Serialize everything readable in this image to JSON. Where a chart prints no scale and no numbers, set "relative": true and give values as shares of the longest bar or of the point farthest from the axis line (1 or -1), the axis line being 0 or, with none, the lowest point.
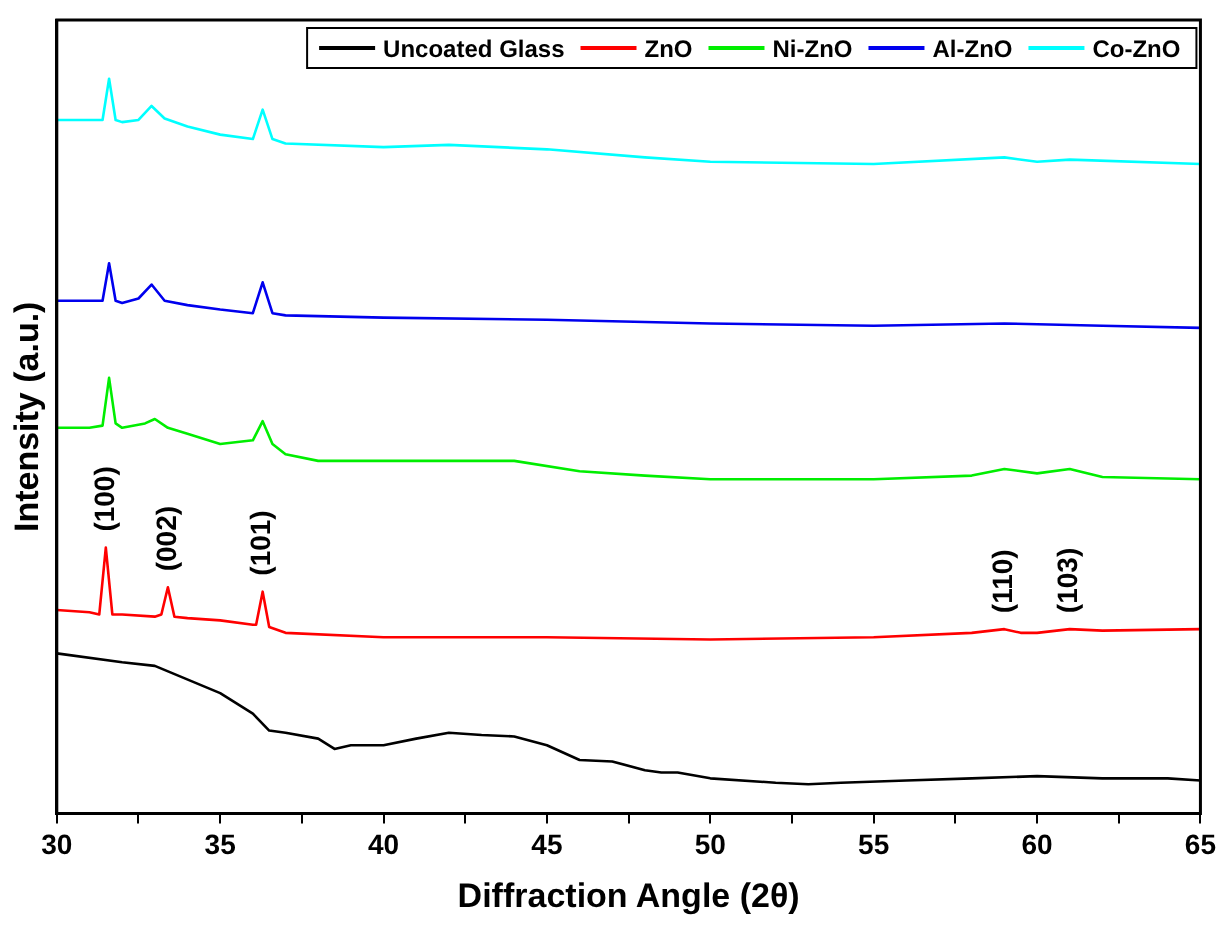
{
  "chart_data": {
    "type": "line",
    "relative": true,
    "xlabel": "Diffraction Angle (2θ)",
    "ylabel": "Intensity (a.u.)",
    "xlim": [
      30,
      65
    ],
    "xticks": [
      30,
      {
        "value": 32.5,
        "label": null
      },
      35,
      {
        "value": 37.5,
        "label": null
      },
      40,
      {
        "value": 42.5,
        "label": null
      },
      45,
      {
        "value": 47.5,
        "label": null
      },
      50,
      {
        "value": 52.5,
        "label": null
      },
      55,
      {
        "value": 57.5,
        "label": null
      },
      60,
      {
        "value": 62.5,
        "label": null
      },
      65
    ],
    "grid": false,
    "legend": "top right",
    "marker": "none",
    "line_style": "solid",
    "series": [
      {
        "name": "Uncoated Glass",
        "color": "#000000",
        "x": [
          30,
          32,
          33,
          35,
          36,
          36.5,
          37,
          38,
          38.5,
          39,
          40,
          41,
          42,
          43,
          44,
          45,
          46,
          47,
          48,
          48.5,
          49,
          50,
          52,
          53,
          54,
          56,
          58,
          60,
          62,
          64,
          65
        ],
        "values": [
          0.218,
          0.206,
          0.201,
          0.164,
          0.136,
          0.113,
          0.11,
          0.102,
          0.088,
          0.093,
          0.093,
          0.102,
          0.11,
          0.107,
          0.105,
          0.093,
          0.073,
          0.071,
          0.059,
          0.056,
          0.056,
          0.048,
          0.042,
          0.04,
          0.042,
          0.045,
          0.048,
          0.051,
          0.048,
          0.048,
          0.045
        ]
      },
      {
        "name": "ZnO",
        "color": "#ff0000",
        "x": [
          30,
          31,
          31.3,
          31.5,
          31.7,
          32,
          33,
          33.2,
          33.4,
          33.6,
          34,
          35,
          36,
          36.1,
          36.3,
          36.5,
          37,
          40,
          45,
          50,
          55,
          58,
          59,
          59.5,
          60,
          61,
          62,
          65
        ],
        "values": [
          0.277,
          0.274,
          0.271,
          0.362,
          0.271,
          0.271,
          0.268,
          0.271,
          0.308,
          0.268,
          0.266,
          0.263,
          0.257,
          0.257,
          0.302,
          0.254,
          0.246,
          0.24,
          0.24,
          0.237,
          0.24,
          0.246,
          0.251,
          0.246,
          0.246,
          0.251,
          0.249,
          0.251
        ]
      },
      {
        "name": "Ni-ZnO",
        "color": "#00ee00",
        "x": [
          30,
          31,
          31.4,
          31.6,
          31.8,
          32,
          32.7,
          33,
          33.4,
          34,
          35,
          36,
          36.3,
          36.6,
          37,
          38,
          40,
          44,
          46,
          48,
          50,
          55,
          58,
          59,
          60,
          61,
          62,
          65
        ],
        "values": [
          0.525,
          0.525,
          0.528,
          0.593,
          0.531,
          0.525,
          0.531,
          0.537,
          0.525,
          0.517,
          0.503,
          0.508,
          0.534,
          0.503,
          0.489,
          0.48,
          0.48,
          0.48,
          0.466,
          0.46,
          0.455,
          0.455,
          0.46,
          0.469,
          0.463,
          0.469,
          0.458,
          0.455
        ]
      },
      {
        "name": "Al-ZnO",
        "color": "#0000ee",
        "x": [
          30,
          31,
          31.4,
          31.6,
          31.8,
          32,
          32.5,
          32.9,
          33.3,
          34,
          35,
          36,
          36.3,
          36.6,
          37,
          40,
          45,
          48,
          50,
          55,
          59,
          62,
          65
        ],
        "values": [
          0.698,
          0.698,
          0.698,
          0.749,
          0.698,
          0.695,
          0.701,
          0.72,
          0.698,
          0.692,
          0.686,
          0.681,
          0.723,
          0.681,
          0.678,
          0.675,
          0.672,
          0.669,
          0.667,
          0.664,
          0.667,
          0.664,
          0.661
        ]
      },
      {
        "name": "Co-ZnO",
        "color": "#00ffff",
        "x": [
          30,
          31,
          31.4,
          31.6,
          31.8,
          32,
          32.5,
          32.9,
          33.3,
          34,
          35,
          36,
          36.3,
          36.6,
          37,
          40,
          42,
          45,
          48,
          50,
          55,
          59,
          60,
          61,
          65
        ],
        "values": [
          0.944,
          0.944,
          0.944,
          1,
          0.944,
          0.941,
          0.944,
          0.963,
          0.946,
          0.935,
          0.924,
          0.918,
          0.958,
          0.918,
          0.912,
          0.907,
          0.91,
          0.904,
          0.893,
          0.887,
          0.884,
          0.893,
          0.887,
          0.89,
          0.884
        ]
      }
    ],
    "annotations": [
      {
        "text": "(100)",
        "x": 31.5,
        "y": 0.362
      },
      {
        "text": "(002)",
        "x": 33.4,
        "y": 0.308
      },
      {
        "text": "(101)",
        "x": 36.3,
        "y": 0.302
      },
      {
        "text": "(110)",
        "x": 59,
        "y": 0.251
      },
      {
        "text": "(103)",
        "x": 61,
        "y": 0.251
      }
    ]
  }
}
